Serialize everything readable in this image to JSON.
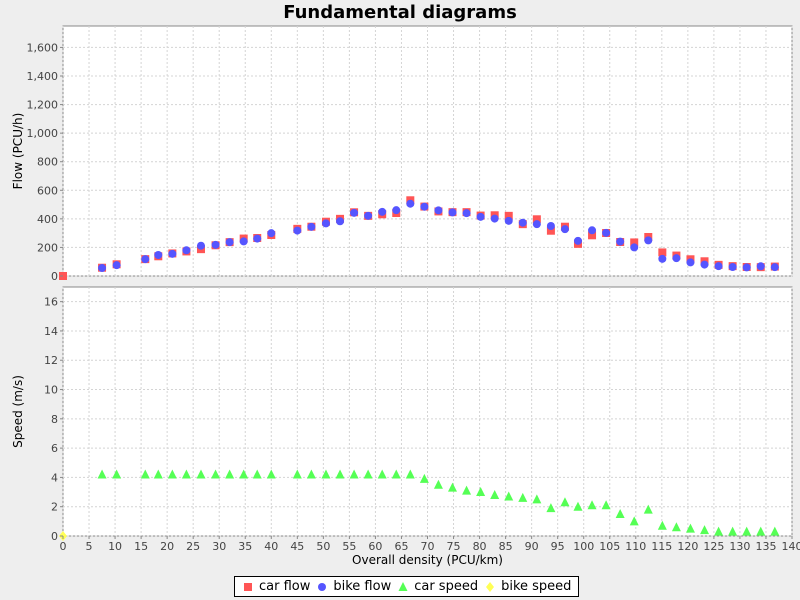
{
  "chart_data": {
    "type": "scatter",
    "title": "Fundamental diagrams",
    "xlabel": "Overall density (PCU/km)",
    "xlim": [
      0,
      140
    ],
    "xticks": [
      0,
      5,
      10,
      15,
      20,
      25,
      30,
      35,
      40,
      45,
      50,
      55,
      60,
      65,
      70,
      75,
      80,
      85,
      90,
      95,
      100,
      105,
      110,
      115,
      120,
      125,
      130,
      135,
      140
    ],
    "grid": true,
    "legend_position": "bottom",
    "panels": [
      {
        "name": "flow",
        "ylabel": "Flow (PCU/h)",
        "ylim": [
          0,
          1750
        ],
        "yticks": [
          0,
          200,
          400,
          600,
          800,
          1000,
          1200,
          1400,
          1600
        ],
        "ytick_labels": [
          "0",
          "200",
          "400",
          "600",
          "800",
          "1,000",
          "1,200",
          "1,400",
          "1,600"
        ]
      },
      {
        "name": "speed",
        "ylabel": "Speed (m/s)",
        "ylim": [
          0,
          17
        ],
        "yticks": [
          0,
          2,
          4,
          6,
          8,
          10,
          12,
          14,
          16
        ],
        "ytick_labels": [
          "0",
          "2",
          "4",
          "6",
          "8",
          "10",
          "12",
          "14",
          "16"
        ]
      }
    ],
    "series": [
      {
        "name": "car flow",
        "panel": "flow",
        "marker": "square",
        "color": "#ff5555",
        "x": [
          0,
          7.5,
          10.3,
          15.8,
          18.3,
          21,
          23.7,
          26.5,
          29.3,
          32,
          34.7,
          37.3,
          40,
          45,
          47.7,
          50.5,
          53.2,
          55.9,
          58.6,
          61.3,
          64,
          66.7,
          69.4,
          72.1,
          74.8,
          77.5,
          80.2,
          82.9,
          85.6,
          88.3,
          91,
          93.7,
          96.4,
          98.9,
          101.6,
          104.3,
          107,
          109.7,
          112.4,
          115.1,
          117.8,
          120.5,
          123.2,
          125.9,
          128.6,
          131.3,
          134,
          136.7
        ],
        "y": [
          0,
          58,
          82,
          118,
          138,
          158,
          172,
          188,
          215,
          237,
          262,
          266,
          287,
          330,
          345,
          380,
          400,
          446,
          421,
          432,
          441,
          530,
          486,
          452,
          447,
          447,
          423,
          425,
          421,
          363,
          397,
          317,
          345,
          225,
          285,
          301,
          238,
          235,
          273,
          165,
          143,
          117,
          103,
          78,
          69,
          63,
          62,
          66
        ]
      },
      {
        "name": "bike flow",
        "panel": "flow",
        "marker": "circle",
        "color": "#5555ff",
        "x": [
          7.5,
          10.3,
          15.8,
          18.3,
          21,
          23.7,
          26.5,
          29.3,
          32,
          34.7,
          37.3,
          40,
          45,
          47.7,
          50.5,
          53.2,
          55.9,
          58.6,
          61.3,
          64,
          66.7,
          69.4,
          72.1,
          74.8,
          77.5,
          80.2,
          82.9,
          85.6,
          88.3,
          91,
          93.7,
          96.4,
          98.9,
          101.6,
          104.3,
          107,
          109.7,
          112.4,
          115.1,
          117.8,
          120.5,
          123.2,
          125.9,
          128.6,
          131.3,
          134,
          136.7
        ],
        "y": [
          56,
          76,
          118,
          147,
          155,
          180,
          212,
          218,
          237,
          242,
          262,
          300,
          318,
          344,
          368,
          383,
          442,
          421,
          449,
          461,
          506,
          485,
          459,
          445,
          440,
          414,
          402,
          386,
          373,
          363,
          350,
          328,
          246,
          320,
          302,
          241,
          200,
          249,
          120,
          125,
          95,
          80,
          69,
          63,
          60,
          68,
          62
        ]
      },
      {
        "name": "car speed",
        "panel": "speed",
        "marker": "triangle",
        "color": "#55ff55",
        "x": [
          7.5,
          10.3,
          15.8,
          18.3,
          21,
          23.7,
          26.5,
          29.3,
          32,
          34.7,
          37.3,
          40,
          45,
          47.7,
          50.5,
          53.2,
          55.9,
          58.6,
          61.3,
          64,
          66.7,
          69.4,
          72.1,
          74.8,
          77.5,
          80.2,
          82.9,
          85.6,
          88.3,
          91,
          93.7,
          96.4,
          98.9,
          101.6,
          104.3,
          107,
          109.7,
          112.4,
          115.1,
          117.8,
          120.5,
          123.2,
          125.9,
          128.6,
          131.3,
          134,
          136.7
        ],
        "y": [
          4.2,
          4.2,
          4.2,
          4.2,
          4.2,
          4.2,
          4.2,
          4.2,
          4.2,
          4.2,
          4.2,
          4.2,
          4.2,
          4.2,
          4.2,
          4.2,
          4.2,
          4.2,
          4.2,
          4.2,
          4.2,
          3.9,
          3.5,
          3.3,
          3.1,
          3.0,
          2.8,
          2.7,
          2.6,
          2.5,
          1.9,
          2.3,
          2.0,
          2.1,
          2.1,
          1.5,
          1.0,
          1.8,
          0.7,
          0.6,
          0.5,
          0.4,
          0.3,
          0.3,
          0.3,
          0.3,
          0.3
        ]
      },
      {
        "name": "bike speed",
        "panel": "speed",
        "marker": "diamond",
        "color": "#ffff55",
        "x": [
          0
        ],
        "y": [
          0
        ]
      }
    ]
  }
}
